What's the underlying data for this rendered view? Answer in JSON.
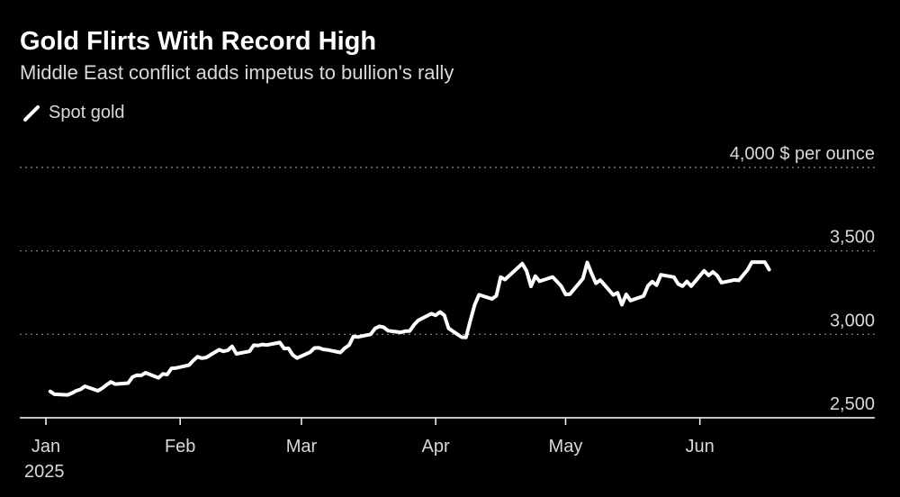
{
  "chart_data": {
    "type": "line",
    "title": "Gold Flirts With Record High",
    "subtitle": "Middle East conflict adds impetus to bullion's rally",
    "series": [
      {
        "name": "Spot gold",
        "color": "#ffffff",
        "points": [
          [
            "2025-01-02",
            2658
          ],
          [
            "2025-01-03",
            2641
          ],
          [
            "2025-01-06",
            2637
          ],
          [
            "2025-01-07",
            2648
          ],
          [
            "2025-01-08",
            2662
          ],
          [
            "2025-01-09",
            2670
          ],
          [
            "2025-01-10",
            2689
          ],
          [
            "2025-01-13",
            2662
          ],
          [
            "2025-01-14",
            2677
          ],
          [
            "2025-01-15",
            2697
          ],
          [
            "2025-01-16",
            2715
          ],
          [
            "2025-01-17",
            2702
          ],
          [
            "2025-01-20",
            2708
          ],
          [
            "2025-01-21",
            2744
          ],
          [
            "2025-01-22",
            2755
          ],
          [
            "2025-01-23",
            2754
          ],
          [
            "2025-01-24",
            2770
          ],
          [
            "2025-01-27",
            2739
          ],
          [
            "2025-01-28",
            2763
          ],
          [
            "2025-01-29",
            2759
          ],
          [
            "2025-01-30",
            2796
          ],
          [
            "2025-01-31",
            2798
          ],
          [
            "2025-02-03",
            2815
          ],
          [
            "2025-02-04",
            2842
          ],
          [
            "2025-02-05",
            2866
          ],
          [
            "2025-02-06",
            2857
          ],
          [
            "2025-02-07",
            2861
          ],
          [
            "2025-02-10",
            2908
          ],
          [
            "2025-02-11",
            2898
          ],
          [
            "2025-02-12",
            2904
          ],
          [
            "2025-02-13",
            2928
          ],
          [
            "2025-02-14",
            2883
          ],
          [
            "2025-02-17",
            2898
          ],
          [
            "2025-02-18",
            2935
          ],
          [
            "2025-02-19",
            2933
          ],
          [
            "2025-02-20",
            2939
          ],
          [
            "2025-02-21",
            2936
          ],
          [
            "2025-02-24",
            2951
          ],
          [
            "2025-02-25",
            2915
          ],
          [
            "2025-02-26",
            2916
          ],
          [
            "2025-02-27",
            2876
          ],
          [
            "2025-02-28",
            2858
          ],
          [
            "2025-03-03",
            2893
          ],
          [
            "2025-03-04",
            2918
          ],
          [
            "2025-03-05",
            2919
          ],
          [
            "2025-03-06",
            2910
          ],
          [
            "2025-03-07",
            2907
          ],
          [
            "2025-03-10",
            2891
          ],
          [
            "2025-03-11",
            2917
          ],
          [
            "2025-03-12",
            2935
          ],
          [
            "2025-03-13",
            2988
          ],
          [
            "2025-03-14",
            2984
          ],
          [
            "2025-03-17",
            3000
          ],
          [
            "2025-03-18",
            3035
          ],
          [
            "2025-03-19",
            3048
          ],
          [
            "2025-03-20",
            3043
          ],
          [
            "2025-03-21",
            3022
          ],
          [
            "2025-03-24",
            3012
          ],
          [
            "2025-03-25",
            3019
          ],
          [
            "2025-03-26",
            3020
          ],
          [
            "2025-03-27",
            3057
          ],
          [
            "2025-03-28",
            3084
          ],
          [
            "2025-03-31",
            3124
          ],
          [
            "2025-04-01",
            3114
          ],
          [
            "2025-04-02",
            3134
          ],
          [
            "2025-04-03",
            3114
          ],
          [
            "2025-04-04",
            3036
          ],
          [
            "2025-04-07",
            2983
          ],
          [
            "2025-04-08",
            2982
          ],
          [
            "2025-04-09",
            3083
          ],
          [
            "2025-04-10",
            3176
          ],
          [
            "2025-04-11",
            3237
          ],
          [
            "2025-04-14",
            3212
          ],
          [
            "2025-04-15",
            3231
          ],
          [
            "2025-04-16",
            3343
          ],
          [
            "2025-04-17",
            3328
          ],
          [
            "2025-04-21",
            3424
          ],
          [
            "2025-04-22",
            3380
          ],
          [
            "2025-04-23",
            3287
          ],
          [
            "2025-04-24",
            3349
          ],
          [
            "2025-04-25",
            3318
          ],
          [
            "2025-04-28",
            3344
          ],
          [
            "2025-04-29",
            3317
          ],
          [
            "2025-04-30",
            3289
          ],
          [
            "2025-05-01",
            3239
          ],
          [
            "2025-05-02",
            3241
          ],
          [
            "2025-05-05",
            3334
          ],
          [
            "2025-05-06",
            3431
          ],
          [
            "2025-05-07",
            3365
          ],
          [
            "2025-05-08",
            3306
          ],
          [
            "2025-05-09",
            3325
          ],
          [
            "2025-05-12",
            3236
          ],
          [
            "2025-05-13",
            3249
          ],
          [
            "2025-05-14",
            3177
          ],
          [
            "2025-05-15",
            3240
          ],
          [
            "2025-05-16",
            3202
          ],
          [
            "2025-05-19",
            3230
          ],
          [
            "2025-05-20",
            3290
          ],
          [
            "2025-05-21",
            3316
          ],
          [
            "2025-05-22",
            3295
          ],
          [
            "2025-05-23",
            3357
          ],
          [
            "2025-05-26",
            3343
          ],
          [
            "2025-05-27",
            3302
          ],
          [
            "2025-05-28",
            3289
          ],
          [
            "2025-05-29",
            3317
          ],
          [
            "2025-05-30",
            3289
          ],
          [
            "2025-06-02",
            3381
          ],
          [
            "2025-06-03",
            3353
          ],
          [
            "2025-06-04",
            3374
          ],
          [
            "2025-06-05",
            3352
          ],
          [
            "2025-06-06",
            3310
          ],
          [
            "2025-06-09",
            3326
          ],
          [
            "2025-06-10",
            3323
          ],
          [
            "2025-06-11",
            3355
          ],
          [
            "2025-06-12",
            3386
          ],
          [
            "2025-06-13",
            3433
          ],
          [
            "2025-06-16",
            3433
          ],
          [
            "2025-06-17",
            3388
          ]
        ]
      }
    ],
    "y_axis": {
      "min": 2500,
      "max": 4000,
      "ticks": [
        2500,
        3000,
        3500,
        4000
      ],
      "tick_labels": [
        "2,500",
        "3,000",
        "3,500",
        "4,000"
      ],
      "unit_label": "$ per ounce",
      "side": "right",
      "grid": "dotted"
    },
    "x_axis": {
      "start": "2025-01-01",
      "end": "2025-06-30",
      "ticks": [
        {
          "date": "2025-01-01",
          "label": "Jan",
          "sublabel": "2025"
        },
        {
          "date": "2025-02-01",
          "label": "Feb"
        },
        {
          "date": "2025-03-01",
          "label": "Mar"
        },
        {
          "date": "2025-04-01",
          "label": "Apr"
        },
        {
          "date": "2025-05-01",
          "label": "May"
        },
        {
          "date": "2025-06-01",
          "label": "Jun"
        }
      ]
    },
    "legend_position": "top-left",
    "background": "#000000"
  }
}
